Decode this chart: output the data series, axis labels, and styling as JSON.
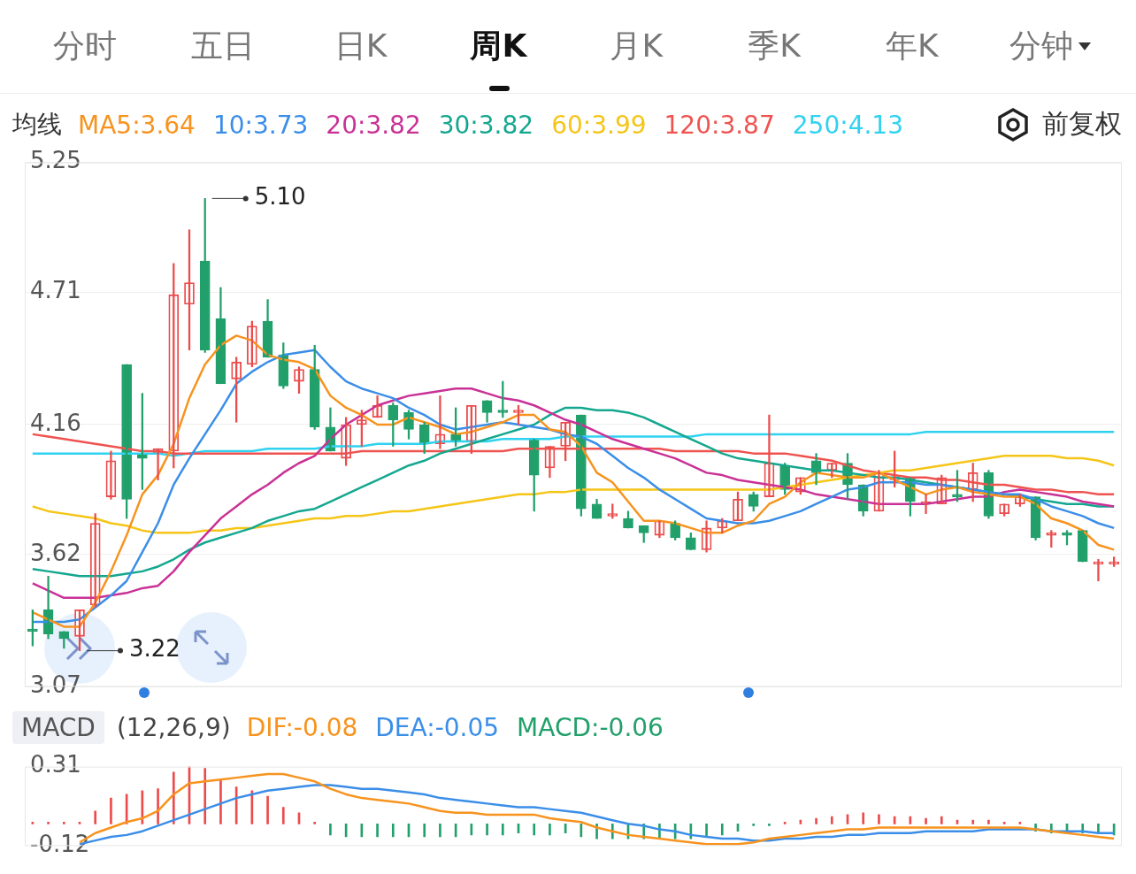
{
  "chart_data": [
    {
      "type": "candlestick",
      "title": "均线",
      "legend": "top",
      "grid": "y",
      "marker": "none",
      "annotations": [
        "分时",
        "五日",
        "日K",
        "周K",
        "月K",
        "季K",
        "年K",
        "分钟",
        "前复权",
        "5.10",
        "3.22"
      ],
      "categories": [
        null,
        null,
        null,
        null,
        null,
        null,
        null,
        null,
        null,
        null,
        null,
        null,
        null,
        null,
        null,
        null,
        null,
        null,
        null,
        null,
        null,
        null,
        null,
        null,
        null,
        null,
        null,
        null,
        null,
        null,
        null,
        null,
        null,
        null,
        null,
        null,
        null,
        null,
        null,
        null,
        null,
        null,
        null,
        null,
        null,
        null,
        null,
        null,
        null,
        null,
        null,
        null,
        null,
        null,
        null,
        null,
        null,
        null,
        null,
        null,
        null,
        null,
        null,
        null,
        null,
        null,
        null,
        null,
        null,
        null
      ],
      "ohlc": [
        [
          3.31,
          3.39,
          3.24,
          3.3
        ],
        [
          3.39,
          3.53,
          3.27,
          3.29
        ],
        [
          3.3,
          3.3,
          3.23,
          3.27
        ],
        [
          3.28,
          3.39,
          3.22,
          3.39
        ],
        [
          3.41,
          3.79,
          3.4,
          3.75
        ],
        [
          3.86,
          4.05,
          3.85,
          4.01
        ],
        [
          4.41,
          4.41,
          3.77,
          3.85
        ],
        [
          4.04,
          4.29,
          3.89,
          4.02
        ],
        [
          4.04,
          4.06,
          3.93,
          4.06
        ],
        [
          4.05,
          4.83,
          3.98,
          4.7
        ],
        [
          4.66,
          4.97,
          4.47,
          4.75
        ],
        [
          4.84,
          5.1,
          4.46,
          4.47
        ],
        [
          4.6,
          4.73,
          4.33,
          4.33
        ],
        [
          4.35,
          4.44,
          4.17,
          4.42
        ],
        [
          4.41,
          4.59,
          4.4,
          4.57
        ],
        [
          4.59,
          4.68,
          4.44,
          4.44
        ],
        [
          4.45,
          4.5,
          4.31,
          4.32
        ],
        [
          4.34,
          4.4,
          4.29,
          4.39
        ],
        [
          4.39,
          4.49,
          4.14,
          4.15
        ],
        [
          4.15,
          4.23,
          4.05,
          4.05
        ],
        [
          4.02,
          4.19,
          3.99,
          4.16
        ],
        [
          4.16,
          4.22,
          4.07,
          4.18
        ],
        [
          4.19,
          4.28,
          4.19,
          4.24
        ],
        [
          4.24,
          4.25,
          4.07,
          4.18
        ],
        [
          4.21,
          4.22,
          4.1,
          4.14
        ],
        [
          4.16,
          4.17,
          4.04,
          4.08
        ],
        [
          4.08,
          4.28,
          4.06,
          4.12
        ],
        [
          4.12,
          4.23,
          4.07,
          4.09
        ],
        [
          4.09,
          4.24,
          4.04,
          4.24
        ],
        [
          4.26,
          4.26,
          4.17,
          4.21
        ],
        [
          4.22,
          4.34,
          4.19,
          4.21
        ],
        [
          4.21,
          4.24,
          4.16,
          4.22
        ],
        [
          4.1,
          4.1,
          3.8,
          3.95
        ],
        [
          3.98,
          4.07,
          3.94,
          4.07
        ],
        [
          4.07,
          4.17,
          4.01,
          4.17
        ],
        [
          4.2,
          4.2,
          3.78,
          3.81
        ],
        [
          3.83,
          3.85,
          3.77,
          3.77
        ],
        [
          3.78,
          3.83,
          3.77,
          3.79
        ],
        [
          3.77,
          3.8,
          3.73,
          3.73
        ],
        [
          3.74,
          3.74,
          3.67,
          3.71
        ],
        [
          3.7,
          3.76,
          3.69,
          3.76
        ],
        [
          3.75,
          3.76,
          3.68,
          3.69
        ],
        [
          3.69,
          3.71,
          3.64,
          3.64
        ],
        [
          3.64,
          3.76,
          3.63,
          3.73
        ],
        [
          3.73,
          3.77,
          3.71,
          3.76
        ],
        [
          3.76,
          3.88,
          3.76,
          3.85
        ],
        [
          3.87,
          3.88,
          3.8,
          3.82
        ],
        [
          3.86,
          4.2,
          3.86,
          4.0
        ],
        [
          3.99,
          4.0,
          3.87,
          3.89
        ],
        [
          3.88,
          3.94,
          3.87,
          3.94
        ],
        [
          4.01,
          4.04,
          3.91,
          3.96
        ],
        [
          3.97,
          4.0,
          3.94,
          4.0
        ],
        [
          4.0,
          4.04,
          3.85,
          3.91
        ],
        [
          3.91,
          3.91,
          3.78,
          3.8
        ],
        [
          3.8,
          3.97,
          3.8,
          3.96
        ],
        [
          3.93,
          4.05,
          3.9,
          3.94
        ],
        [
          3.94,
          3.94,
          3.78,
          3.84
        ],
        [
          3.83,
          3.87,
          3.79,
          3.84
        ],
        [
          3.83,
          3.95,
          3.83,
          3.94
        ],
        [
          3.87,
          3.97,
          3.84,
          3.86
        ],
        [
          3.89,
          4.0,
          3.84,
          3.96
        ],
        [
          3.96,
          3.97,
          3.77,
          3.78
        ],
        [
          3.79,
          3.83,
          3.78,
          3.83
        ],
        [
          3.83,
          3.87,
          3.82,
          3.86
        ],
        [
          3.86,
          3.86,
          3.68,
          3.69
        ],
        [
          3.7,
          3.72,
          3.65,
          3.71
        ],
        [
          3.71,
          3.72,
          3.66,
          3.7
        ],
        [
          3.72,
          3.72,
          3.59,
          3.59
        ],
        [
          3.58,
          3.6,
          3.51,
          3.59
        ],
        [
          3.58,
          3.61,
          3.57,
          3.59
        ]
      ],
      "colors": [
        "#22a06b",
        "#22a06b",
        "#22a06b",
        "#ec4b4b",
        "#ec4b4b",
        "#ec4b4b",
        "#22a06b",
        "#22a06b",
        "#ec4b4b",
        "#ec4b4b",
        "#ec4b4b",
        "#22a06b",
        "#22a06b",
        "#ec4b4b",
        "#ec4b4b",
        "#22a06b",
        "#22a06b",
        "#ec4b4b",
        "#22a06b",
        "#22a06b",
        "#ec4b4b",
        "#ec4b4b",
        "#ec4b4b",
        "#22a06b",
        "#22a06b",
        "#22a06b",
        "#ec4b4b",
        "#22a06b",
        "#ec4b4b",
        "#22a06b",
        "#22a06b",
        "#ec4b4b",
        "#22a06b",
        "#ec4b4b",
        "#ec4b4b",
        "#22a06b",
        "#22a06b",
        "#ec4b4b",
        "#22a06b",
        "#22a06b",
        "#ec4b4b",
        "#22a06b",
        "#22a06b",
        "#ec4b4b",
        "#ec4b4b",
        "#ec4b4b",
        "#22a06b",
        "#ec4b4b",
        "#22a06b",
        "#ec4b4b",
        "#22a06b",
        "#ec4b4b",
        "#22a06b",
        "#22a06b",
        "#ec4b4b",
        "#ec4b4b",
        "#22a06b",
        "#ec4b4b",
        "#ec4b4b",
        "#22a06b",
        "#ec4b4b",
        "#22a06b",
        "#ec4b4b",
        "#ec4b4b",
        "#22a06b",
        "#ec4b4b",
        "#22a06b",
        "#22a06b",
        "#ec4b4b",
        "#ec4b4b"
      ],
      "series": [
        {
          "type": "line",
          "name": "MA5:3.64",
          "color": "#f7931e",
          "values": [
            3.38,
            3.35,
            3.32,
            3.32,
            3.42,
            3.55,
            3.7,
            3.87,
            3.95,
            4.08,
            4.27,
            4.41,
            4.49,
            4.53,
            4.51,
            4.45,
            4.43,
            4.42,
            4.39,
            4.28,
            4.23,
            4.2,
            4.16,
            4.16,
            4.19,
            4.17,
            4.15,
            4.12,
            4.13,
            4.15,
            4.17,
            4.2,
            4.2,
            4.14,
            4.13,
            4.07,
            3.96,
            3.92,
            3.84,
            3.76,
            3.76,
            3.75,
            3.73,
            3.71,
            3.71,
            3.74,
            3.76,
            3.83,
            3.86,
            3.92,
            3.96,
            3.95,
            3.94,
            3.94,
            3.96,
            3.93,
            3.9,
            3.87,
            3.89,
            3.9,
            3.88,
            3.87,
            3.86,
            3.86,
            3.83,
            3.77,
            3.75,
            3.72,
            3.66,
            3.64
          ]
        },
        {
          "type": "line",
          "name": "10:3.73",
          "color": "#3b8ee8",
          "values": [
            3.34,
            3.34,
            3.34,
            3.35,
            3.4,
            3.45,
            3.51,
            3.63,
            3.75,
            3.91,
            4.02,
            4.12,
            4.22,
            4.33,
            4.38,
            4.42,
            4.45,
            4.46,
            4.47,
            4.4,
            4.34,
            4.31,
            4.29,
            4.27,
            4.23,
            4.2,
            4.16,
            4.14,
            4.15,
            4.16,
            4.17,
            4.16,
            4.15,
            4.14,
            4.12,
            4.11,
            4.08,
            4.03,
            3.98,
            3.94,
            3.89,
            3.85,
            3.81,
            3.77,
            3.76,
            3.75,
            3.75,
            3.76,
            3.78,
            3.8,
            3.83,
            3.86,
            3.89,
            3.9,
            3.92,
            3.92,
            3.92,
            3.91,
            3.91,
            3.9,
            3.89,
            3.88,
            3.87,
            3.87,
            3.85,
            3.82,
            3.8,
            3.78,
            3.75,
            3.73
          ]
        },
        {
          "type": "line",
          "name": "20:3.82",
          "color": "#c93196",
          "values": [
            3.5,
            3.47,
            3.44,
            3.44,
            3.44,
            3.45,
            3.46,
            3.48,
            3.49,
            3.55,
            3.63,
            3.7,
            3.77,
            3.82,
            3.87,
            3.91,
            3.96,
            4.0,
            4.03,
            4.1,
            4.16,
            4.2,
            4.24,
            4.26,
            4.28,
            4.29,
            4.3,
            4.31,
            4.31,
            4.29,
            4.27,
            4.26,
            4.24,
            4.21,
            4.18,
            4.16,
            4.13,
            4.1,
            4.08,
            4.06,
            4.04,
            4.02,
            3.99,
            3.96,
            3.95,
            3.93,
            3.92,
            3.91,
            3.9,
            3.89,
            3.87,
            3.86,
            3.85,
            3.84,
            3.83,
            3.83,
            3.83,
            3.83,
            3.84,
            3.85,
            3.86,
            3.86,
            3.88,
            3.89,
            3.88,
            3.87,
            3.86,
            3.84,
            3.83,
            3.82
          ]
        },
        {
          "type": "line",
          "name": "30:3.82",
          "color": "#14a78f",
          "values": [
            3.56,
            3.55,
            3.54,
            3.53,
            3.53,
            3.53,
            3.54,
            3.55,
            3.57,
            3.6,
            3.64,
            3.67,
            3.69,
            3.71,
            3.73,
            3.76,
            3.78,
            3.8,
            3.81,
            3.84,
            3.87,
            3.9,
            3.93,
            3.96,
            3.99,
            4.01,
            4.04,
            4.06,
            4.08,
            4.1,
            4.12,
            4.14,
            4.16,
            4.2,
            4.23,
            4.23,
            4.22,
            4.22,
            4.21,
            4.19,
            4.16,
            4.13,
            4.1,
            4.07,
            4.04,
            4.02,
            4.01,
            4.0,
            3.99,
            3.98,
            3.97,
            3.97,
            3.96,
            3.95,
            3.94,
            3.94,
            3.93,
            3.92,
            3.91,
            3.9,
            3.89,
            3.88,
            3.87,
            3.86,
            3.85,
            3.84,
            3.83,
            3.83,
            3.82,
            3.82
          ]
        },
        {
          "type": "line",
          "name": "60:3.99",
          "color": "#f5c518",
          "values": [
            3.82,
            3.8,
            3.79,
            3.78,
            3.77,
            3.75,
            3.74,
            3.72,
            3.71,
            3.71,
            3.71,
            3.72,
            3.72,
            3.73,
            3.73,
            3.74,
            3.75,
            3.76,
            3.77,
            3.77,
            3.78,
            3.78,
            3.79,
            3.8,
            3.8,
            3.81,
            3.82,
            3.83,
            3.84,
            3.85,
            3.86,
            3.87,
            3.87,
            3.88,
            3.88,
            3.89,
            3.89,
            3.89,
            3.89,
            3.89,
            3.89,
            3.89,
            3.89,
            3.89,
            3.89,
            3.89,
            3.89,
            3.89,
            3.9,
            3.91,
            3.92,
            3.93,
            3.94,
            3.95,
            3.96,
            3.97,
            3.97,
            3.98,
            3.99,
            4.0,
            4.01,
            4.02,
            4.03,
            4.03,
            4.03,
            4.03,
            4.02,
            4.02,
            4.01,
            3.99
          ]
        },
        {
          "type": "line",
          "name": "120:3.87",
          "color": "#ef5350",
          "values": [
            4.12,
            4.11,
            4.1,
            4.09,
            4.08,
            4.07,
            4.06,
            4.05,
            4.05,
            4.04,
            4.04,
            4.04,
            4.04,
            4.04,
            4.04,
            4.04,
            4.04,
            4.04,
            4.04,
            4.04,
            4.04,
            4.05,
            4.05,
            4.05,
            4.05,
            4.05,
            4.05,
            4.05,
            4.05,
            4.05,
            4.05,
            4.06,
            4.06,
            4.06,
            4.06,
            4.06,
            4.06,
            4.06,
            4.06,
            4.06,
            4.06,
            4.05,
            4.05,
            4.05,
            4.05,
            4.05,
            4.04,
            4.04,
            4.04,
            4.03,
            4.02,
            4.01,
            3.99,
            3.97,
            3.96,
            3.95,
            3.94,
            3.94,
            3.93,
            3.93,
            3.92,
            3.91,
            3.91,
            3.9,
            3.89,
            3.89,
            3.88,
            3.88,
            3.87,
            3.87
          ]
        },
        {
          "type": "line",
          "name": "250:4.13",
          "color": "#2fd2f0",
          "values": [
            4.04,
            4.04,
            4.04,
            4.04,
            4.04,
            4.04,
            4.04,
            4.04,
            4.04,
            4.03,
            4.04,
            4.05,
            4.05,
            4.05,
            4.05,
            4.06,
            4.06,
            4.06,
            4.06,
            4.07,
            4.07,
            4.07,
            4.08,
            4.08,
            4.08,
            4.08,
            4.09,
            4.09,
            4.09,
            4.09,
            4.1,
            4.1,
            4.1,
            4.1,
            4.11,
            4.11,
            4.11,
            4.11,
            4.11,
            4.11,
            4.11,
            4.11,
            4.11,
            4.12,
            4.12,
            4.12,
            4.12,
            4.12,
            4.12,
            4.12,
            4.12,
            4.12,
            4.12,
            4.12,
            4.12,
            4.12,
            4.12,
            4.13,
            4.13,
            4.13,
            4.13,
            4.13,
            4.13,
            4.13,
            4.13,
            4.13,
            4.13,
            4.13,
            4.13,
            4.13
          ]
        }
      ],
      "ylim": [
        3.07,
        5.25
      ],
      "yticks": [
        3.07,
        3.62,
        4.16,
        4.71,
        5.25
      ]
    },
    {
      "type": "bar",
      "title": "MACD",
      "subtitle": "(12,26,9)",
      "legend": "top",
      "marker": "none",
      "categories": [
        null,
        null,
        null,
        null,
        null,
        null,
        null,
        null,
        null,
        null,
        null,
        null,
        null,
        null,
        null,
        null,
        null,
        null,
        null,
        null,
        null,
        null,
        null,
        null,
        null,
        null,
        null,
        null,
        null,
        null,
        null,
        null,
        null,
        null,
        null,
        null,
        null,
        null,
        null,
        null,
        null,
        null,
        null,
        null,
        null,
        null,
        null,
        null,
        null,
        null,
        null,
        null,
        null,
        null,
        null,
        null,
        null,
        null,
        null,
        null,
        null,
        null,
        null,
        null,
        null,
        null,
        null,
        null,
        null,
        null
      ],
      "series": [
        {
          "type": "line",
          "name": "DIF:-0.08",
          "color": "#f7931e",
          "values": [
            null,
            null,
            null,
            -0.1,
            -0.05,
            -0.02,
            0.01,
            0.03,
            0.07,
            0.16,
            0.22,
            0.23,
            0.24,
            0.25,
            0.26,
            0.27,
            0.27,
            0.25,
            0.23,
            0.19,
            0.16,
            0.14,
            0.13,
            0.12,
            0.11,
            0.09,
            0.07,
            0.06,
            0.06,
            0.05,
            0.05,
            0.05,
            0.05,
            0.03,
            0.02,
            0.01,
            -0.02,
            -0.04,
            -0.06,
            -0.07,
            -0.08,
            -0.09,
            -0.1,
            -0.11,
            -0.11,
            -0.11,
            -0.1,
            -0.08,
            -0.07,
            -0.06,
            -0.05,
            -0.04,
            -0.03,
            -0.03,
            -0.02,
            -0.02,
            -0.02,
            -0.02,
            -0.02,
            -0.02,
            -0.02,
            -0.02,
            -0.02,
            -0.02,
            -0.03,
            -0.04,
            -0.05,
            -0.06,
            -0.07,
            -0.08
          ]
        },
        {
          "type": "line",
          "name": "DEA:-0.05",
          "color": "#3b8ee8",
          "values": [
            null,
            null,
            null,
            -0.11,
            -0.09,
            -0.07,
            -0.06,
            -0.04,
            -0.01,
            0.02,
            0.05,
            0.08,
            0.11,
            0.14,
            0.16,
            0.18,
            0.19,
            0.2,
            0.21,
            0.21,
            0.2,
            0.19,
            0.19,
            0.18,
            0.17,
            0.16,
            0.14,
            0.13,
            0.12,
            0.11,
            0.1,
            0.09,
            0.09,
            0.08,
            0.07,
            0.06,
            0.04,
            0.02,
            0.0,
            -0.01,
            -0.03,
            -0.04,
            -0.06,
            -0.07,
            -0.08,
            -0.08,
            -0.09,
            -0.09,
            -0.08,
            -0.08,
            -0.07,
            -0.07,
            -0.06,
            -0.06,
            -0.05,
            -0.05,
            -0.05,
            -0.04,
            -0.04,
            -0.04,
            -0.04,
            -0.03,
            -0.03,
            -0.03,
            -0.03,
            -0.04,
            -0.04,
            -0.04,
            -0.05,
            -0.05
          ]
        },
        {
          "type": "bar",
          "name": "MACD:-0.06",
          "color": "#22a06b",
          "values": [
            0.01,
            0.01,
            0.01,
            0.01,
            0.07,
            0.14,
            0.16,
            0.18,
            0.19,
            0.28,
            0.31,
            0.3,
            0.24,
            0.2,
            0.18,
            0.15,
            0.09,
            0.06,
            0.01,
            -0.06,
            -0.07,
            -0.07,
            -0.07,
            -0.07,
            -0.07,
            -0.07,
            -0.07,
            -0.07,
            -0.06,
            -0.06,
            -0.06,
            -0.05,
            -0.06,
            -0.06,
            -0.05,
            -0.07,
            -0.08,
            -0.08,
            -0.08,
            -0.08,
            -0.08,
            -0.08,
            -0.08,
            -0.07,
            -0.06,
            -0.04,
            -0.01,
            -0.01,
            0.01,
            0.02,
            0.03,
            0.04,
            0.05,
            0.06,
            0.05,
            0.04,
            0.04,
            0.03,
            0.04,
            0.02,
            0.02,
            0.02,
            0.01,
            0.01,
            -0.04,
            -0.05,
            -0.04,
            -0.05,
            -0.05,
            -0.06
          ],
          "colors": [
            "#ec4b4b",
            "#ec4b4b",
            "#ec4b4b",
            "#ec4b4b",
            "#ec4b4b",
            "#ec4b4b",
            "#ec4b4b",
            "#ec4b4b",
            "#ec4b4b",
            "#ec4b4b",
            "#ec4b4b",
            "#ec4b4b",
            "#ec4b4b",
            "#ec4b4b",
            "#ec4b4b",
            "#ec4b4b",
            "#ec4b4b",
            "#ec4b4b",
            "#ec4b4b",
            "#22a06b",
            "#22a06b",
            "#22a06b",
            "#22a06b",
            "#22a06b",
            "#22a06b",
            "#22a06b",
            "#22a06b",
            "#22a06b",
            "#22a06b",
            "#22a06b",
            "#22a06b",
            "#22a06b",
            "#22a06b",
            "#22a06b",
            "#22a06b",
            "#22a06b",
            "#22a06b",
            "#22a06b",
            "#22a06b",
            "#22a06b",
            "#22a06b",
            "#22a06b",
            "#22a06b",
            "#22a06b",
            "#22a06b",
            "#22a06b",
            "#22a06b",
            "#22a06b",
            "#ec4b4b",
            "#ec4b4b",
            "#ec4b4b",
            "#ec4b4b",
            "#ec4b4b",
            "#ec4b4b",
            "#ec4b4b",
            "#ec4b4b",
            "#ec4b4b",
            "#ec4b4b",
            "#ec4b4b",
            "#ec4b4b",
            "#ec4b4b",
            "#ec4b4b",
            "#ec4b4b",
            "#ec4b4b",
            "#22a06b",
            "#22a06b",
            "#22a06b",
            "#22a06b",
            "#22a06b",
            "#22a06b"
          ]
        }
      ],
      "ylim": [
        -0.12,
        0.31
      ],
      "yticks": [
        -0.12,
        0.31
      ]
    }
  ]
}
